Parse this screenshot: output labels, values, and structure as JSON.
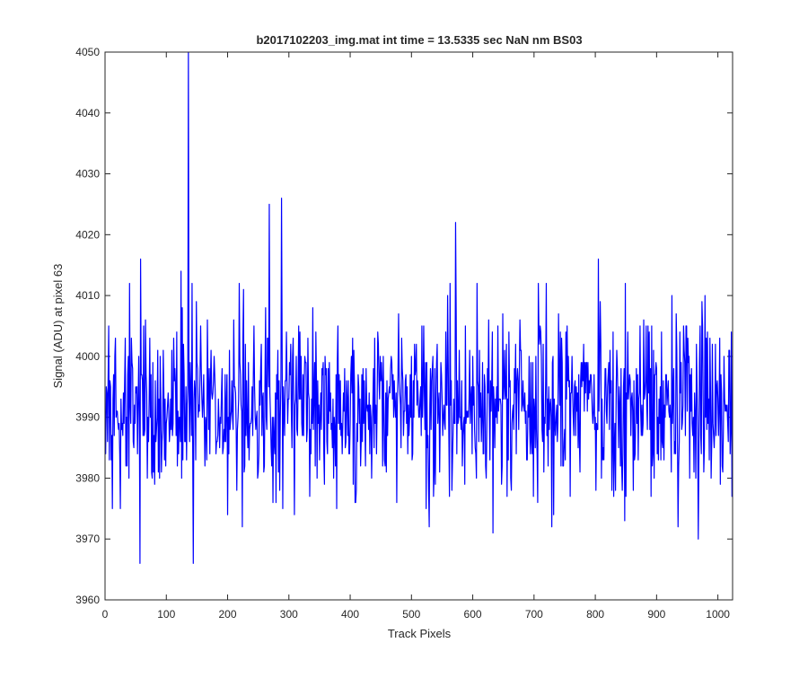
{
  "chart_data": {
    "type": "line",
    "title": "b2017102203_img.mat int time = 13.5335 sec  NaN nm BS03",
    "xlabel": "Track Pixels",
    "ylabel": "Signal (ADU) at pixel 63",
    "xlim": [
      0,
      1024
    ],
    "ylim": [
      3960,
      4050
    ],
    "xticks": [
      0,
      100,
      200,
      300,
      400,
      500,
      600,
      700,
      800,
      900,
      1000
    ],
    "yticks": [
      3960,
      3970,
      3980,
      3990,
      4000,
      4010,
      4020,
      4030,
      4040,
      4050
    ],
    "grid": false,
    "line_color": "#0000ff",
    "notable_points": [
      {
        "x": 0,
        "y": 3987
      },
      {
        "x": 57,
        "y": 3966
      },
      {
        "x": 57,
        "y": 4016
      },
      {
        "x": 124,
        "y": 4014
      },
      {
        "x": 136,
        "y": 4050
      },
      {
        "x": 144,
        "y": 3966
      },
      {
        "x": 268,
        "y": 4025
      },
      {
        "x": 288,
        "y": 4026
      },
      {
        "x": 572,
        "y": 4022
      },
      {
        "x": 633,
        "y": 3971
      },
      {
        "x": 805,
        "y": 4016
      },
      {
        "x": 968,
        "y": 3970
      },
      {
        "x": 1024,
        "y": 3990
      }
    ],
    "noise": {
      "mean": 3992,
      "std": 7.5,
      "seed": 20171022,
      "count": 1025
    }
  }
}
